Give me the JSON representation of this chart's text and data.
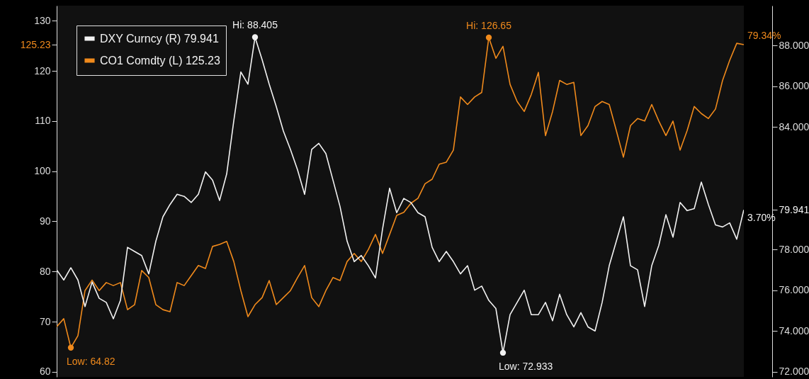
{
  "chart_data": {
    "type": "line",
    "categories": [
      null,
      null,
      null,
      null,
      null,
      null,
      null,
      null,
      null,
      null,
      null,
      null,
      null,
      null,
      null,
      null,
      null,
      null,
      null,
      null,
      null,
      null,
      null,
      null,
      null,
      null,
      null,
      null,
      null,
      null,
      null,
      null,
      null,
      null,
      null,
      null,
      null,
      null,
      null,
      null,
      null,
      null,
      null,
      null,
      null,
      null,
      null,
      null,
      null,
      null,
      null,
      null,
      null,
      null,
      null,
      null,
      null,
      null,
      null,
      null,
      null,
      null,
      null,
      null,
      null,
      null,
      null,
      null,
      null,
      null,
      null,
      null,
      null,
      null,
      null,
      null,
      null,
      null,
      null,
      null,
      null,
      null,
      null,
      null,
      null,
      null,
      null,
      null,
      null,
      null,
      null,
      null,
      null,
      null,
      null,
      null,
      null,
      null
    ],
    "series": [
      {
        "name": "DXY Curncy (R) 79.941",
        "color": "#f2f2f2",
        "axis": "y2",
        "values": [
          77.0,
          76.5,
          77.1,
          76.5,
          75.2,
          76.4,
          75.6,
          75.4,
          74.6,
          75.5,
          78.1,
          77.9,
          77.7,
          76.8,
          78.4,
          79.6,
          80.2,
          80.7,
          80.6,
          80.3,
          80.7,
          81.8,
          81.4,
          80.4,
          81.7,
          84.3,
          86.7,
          86.1,
          88.405,
          87.3,
          86.1,
          85.0,
          83.8,
          82.9,
          81.9,
          80.7,
          82.9,
          83.2,
          82.7,
          81.4,
          80.1,
          78.4,
          77.4,
          77.7,
          77.2,
          76.6,
          79.0,
          81.0,
          79.8,
          80.5,
          80.3,
          79.8,
          79.6,
          78.1,
          77.4,
          77.9,
          77.4,
          76.8,
          77.2,
          76.0,
          76.2,
          75.5,
          75.1,
          72.933,
          74.8,
          75.4,
          76.0,
          74.8,
          74.8,
          75.4,
          74.5,
          75.8,
          74.8,
          74.2,
          74.9,
          74.2,
          74.0,
          75.4,
          77.2,
          78.4,
          79.6,
          77.2,
          77.0,
          75.2,
          77.2,
          78.2,
          79.7,
          78.6,
          80.3,
          79.9,
          80.0,
          81.3,
          80.2,
          79.2,
          79.1,
          79.3,
          78.5,
          79.941
        ],
        "value_labels": [
          null,
          null,
          null,
          null,
          null,
          null,
          null,
          null,
          null,
          null,
          null,
          null,
          null,
          null,
          null,
          null,
          null,
          null,
          null,
          null,
          null,
          null,
          null,
          null,
          null,
          null,
          null,
          null,
          "Hi: 88.405",
          null,
          null,
          null,
          null,
          null,
          null,
          null,
          null,
          null,
          null,
          null,
          null,
          null,
          null,
          null,
          null,
          null,
          null,
          null,
          null,
          null,
          null,
          null,
          null,
          null,
          null,
          null,
          null,
          null,
          null,
          null,
          null,
          null,
          null,
          "Low: 72.933",
          null,
          null,
          null,
          null,
          null,
          null,
          null,
          null,
          null,
          null,
          null,
          null,
          null,
          null,
          null,
          null,
          null,
          null,
          null,
          null,
          null,
          null,
          null,
          null,
          null,
          null,
          null,
          null,
          null,
          null,
          null,
          null,
          null,
          null
        ]
      },
      {
        "name": "CO1 Comdty (L) 125.23",
        "color": "#f08a1c",
        "values": [
          69.0,
          70.6,
          64.82,
          67.2,
          76.2,
          78.3,
          76.2,
          77.8,
          77.2,
          77.8,
          72.4,
          73.4,
          80.2,
          78.8,
          73.4,
          72.4,
          72.0,
          77.8,
          77.2,
          79.2,
          81.2,
          80.6,
          85.0,
          85.4,
          86.0,
          82.0,
          76.2,
          71.0,
          73.4,
          74.8,
          78.2,
          73.4,
          74.8,
          76.2,
          78.8,
          81.2,
          74.8,
          73.0,
          76.2,
          78.8,
          78.2,
          82.0,
          83.6,
          82.0,
          84.4,
          87.4,
          83.6,
          87.4,
          91.2,
          91.8,
          93.6,
          94.6,
          97.5,
          98.4,
          101.4,
          101.8,
          104.2,
          114.8,
          113.3,
          114.8,
          115.7,
          126.65,
          122.5,
          124.9,
          117.3,
          113.9,
          111.9,
          115.3,
          119.7,
          107.1,
          111.9,
          118.1,
          117.3,
          117.7,
          107.1,
          109.1,
          112.9,
          113.9,
          113.3,
          108.1,
          102.8,
          109.1,
          110.5,
          110.0,
          113.3,
          110.0,
          107.1,
          110.0,
          104.2,
          108.1,
          112.9,
          111.5,
          110.5,
          112.4,
          118.1,
          122.1,
          125.5,
          125.23
        ],
        "value_labels": [
          null,
          null,
          "Low: 64.82",
          null,
          null,
          null,
          null,
          null,
          null,
          null,
          null,
          null,
          null,
          null,
          null,
          null,
          null,
          null,
          null,
          null,
          null,
          null,
          null,
          null,
          null,
          null,
          null,
          null,
          null,
          null,
          null,
          null,
          null,
          null,
          null,
          null,
          null,
          null,
          null,
          null,
          null,
          null,
          null,
          null,
          null,
          null,
          null,
          null,
          null,
          null,
          null,
          null,
          null,
          null,
          null,
          null,
          null,
          null,
          null,
          null,
          null,
          "Hi: 126.65",
          null,
          null,
          null,
          null,
          null,
          null,
          null,
          null,
          null,
          null,
          null,
          null,
          null,
          null,
          null,
          null,
          null,
          null,
          null,
          null,
          null,
          null,
          null,
          null,
          null,
          null,
          null,
          null,
          null,
          null,
          null,
          null,
          null,
          null,
          null,
          null
        ]
      }
    ],
    "annotations": [
      "3.70%",
      "79.34%"
    ],
    "ylim": [
      59,
      133
    ],
    "yticks": [
      60,
      70,
      80,
      90,
      100,
      110,
      120,
      {
        "value": 125.23,
        "label": "125.23"
      },
      130
    ],
    "y2lim": [
      71.75,
      89.95
    ],
    "y2ticks": [
      {
        "value": 72,
        "label": "72.000"
      },
      {
        "value": 74,
        "label": "74.000"
      },
      {
        "value": 76,
        "label": "76.000"
      },
      {
        "value": 78,
        "label": "78.000"
      },
      {
        "value": 79.941,
        "label": "79.941"
      },
      {
        "value": 84,
        "label": "84.000"
      },
      {
        "value": 86,
        "label": "86.000"
      },
      {
        "value": 88,
        "label": "88.000"
      }
    ],
    "legend": "top left",
    "grid": false,
    "line_style": "solid",
    "marker": "none"
  }
}
